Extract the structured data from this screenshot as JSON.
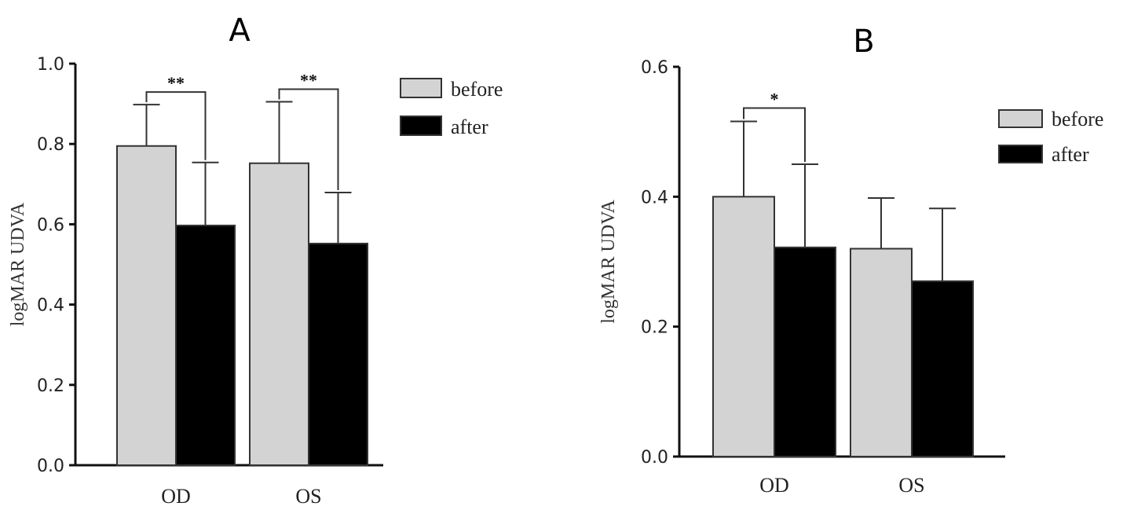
{
  "chart_data": [
    {
      "panel": "A",
      "type": "bar",
      "categories": [
        "OD",
        "OS"
      ],
      "series": [
        {
          "name": "before",
          "color": "#d3d3d3",
          "values": [
            0.795,
            0.752
          ],
          "error": [
            0.103,
            0.153
          ]
        },
        {
          "name": "after",
          "color": "#000000",
          "values": [
            0.597,
            0.552
          ],
          "error": [
            0.157,
            0.127
          ]
        }
      ],
      "ylabel": "logMAR UDVA",
      "xlabel": "",
      "ylim": [
        0,
        1.0
      ],
      "yticks": [
        0.0,
        0.2,
        0.4,
        0.6,
        0.8,
        1.0
      ],
      "ytick_labels": [
        "0.0",
        "0.2",
        "0.4",
        "0.6",
        "0.8",
        "1.0"
      ],
      "legend_position": "top-right",
      "grid": false,
      "significance": [
        {
          "category": "OD",
          "label": "**"
        },
        {
          "category": "OS",
          "label": "**"
        }
      ]
    },
    {
      "panel": "B",
      "type": "bar",
      "categories": [
        "OD",
        "OS"
      ],
      "series": [
        {
          "name": "before",
          "color": "#d3d3d3",
          "values": [
            0.4,
            0.32
          ],
          "error": [
            0.116,
            0.078
          ]
        },
        {
          "name": "after",
          "color": "#000000",
          "values": [
            0.322,
            0.27
          ],
          "error": [
            0.128,
            0.112
          ]
        }
      ],
      "ylabel": "logMAR UDVA",
      "xlabel": "",
      "ylim": [
        0,
        0.6
      ],
      "yticks": [
        0.0,
        0.2,
        0.4,
        0.6
      ],
      "ytick_labels": [
        "0.0",
        "0.2",
        "0.4",
        "0.6"
      ],
      "legend_position": "top-right",
      "grid": false,
      "significance": [
        {
          "category": "OD",
          "label": "*"
        }
      ]
    }
  ]
}
